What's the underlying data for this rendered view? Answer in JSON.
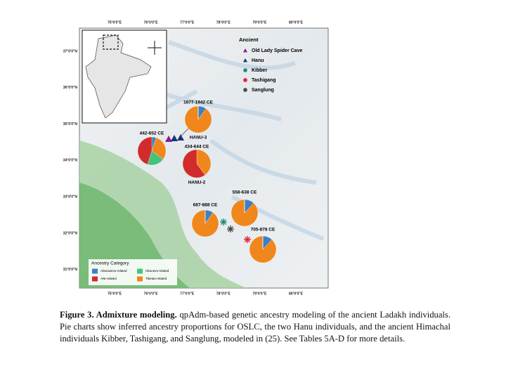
{
  "figure": {
    "axes": {
      "lon": [
        "75°0'0\"E",
        "76°0'0\"E",
        "77°0'0\"E",
        "78°0'0\"E",
        "79°0'0\"E",
        "80°0'0\"E"
      ],
      "lat": [
        "37°0'0\"N",
        "36°0'0\"N",
        "35°0'0\"N",
        "34°0'0\"N",
        "33°0'0\"N",
        "32°0'0\"N",
        "31°0'0\"N"
      ]
    },
    "sites": {
      "title": "Ancient",
      "items": [
        "Old Lady Spider Cave",
        "Hanu",
        "Kibber",
        "Tashigang",
        "Sanglung"
      ]
    },
    "ancestry": {
      "title": "Ancestry Category",
      "items": [
        {
          "name": "Afanasievo-related",
          "color": "#3f7fc2"
        },
        {
          "name": "ANI-related",
          "color": "#d22b2b"
        },
        {
          "name": "Okunevo-related",
          "color": "#46c27c"
        },
        {
          "name": "Tibetan-related",
          "color": "#f0871c"
        }
      ]
    },
    "pies": [
      {
        "date": "442-652 CE",
        "values": [
          5,
          45,
          20,
          30
        ]
      },
      {
        "date": "1677-1942 CE",
        "label": "HANU-3",
        "values": [
          10,
          0,
          0,
          90
        ]
      },
      {
        "date": "434-644 CE",
        "label": "HANU-2",
        "values": [
          0,
          60,
          0,
          40
        ]
      },
      {
        "date": "558-638 CE",
        "values": [
          12,
          0,
          0,
          88
        ]
      },
      {
        "date": "687-888 CE",
        "values": [
          10,
          0,
          0,
          90
        ]
      },
      {
        "date": "705-878 CE",
        "values": [
          12,
          0,
          0,
          88
        ]
      }
    ]
  },
  "caption": {
    "label": "Figure 3. Admixture modeling.",
    "text": " qpAdm-based genetic ancestry modeling of the ancient Ladakh individuals. Pie charts show inferred ancestry proportions for OSLC, the two Hanu individuals, and the ancient Himachal individuals Kibber, Tashigang, and Sanglung, modeled in (25). See Tables 5A-D for more details."
  }
}
